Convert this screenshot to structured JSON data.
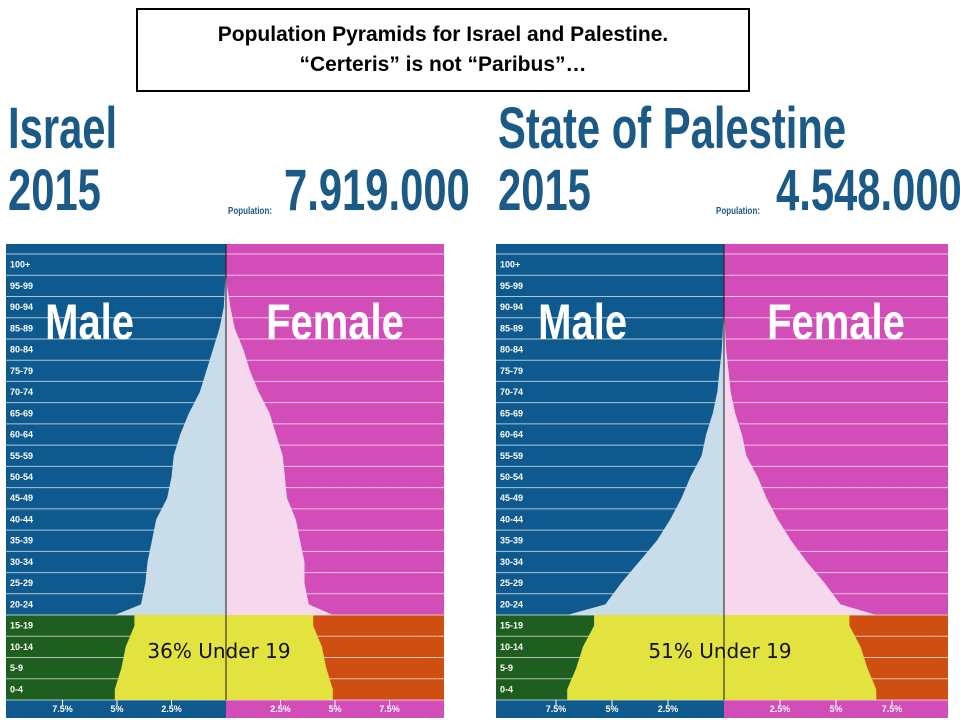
{
  "slide": {
    "title_line1": "Population Pyramids for Israel and Palestine.",
    "title_line2": "“Certeris” is not “Paribus”…"
  },
  "colors": {
    "male_bg": "#0e5a8f",
    "female_bg": "#d24db8",
    "male_young_bg": "#1e5e1f",
    "female_young_bg": "#cf4f12",
    "male_fill": "#c9dcea",
    "female_fill": "#f5d8ee",
    "young_fill": "#e2e33e",
    "text_blue": "#1b5a87"
  },
  "chart_data": [
    {
      "type": "pyramid",
      "country": "Israel",
      "year": "2015",
      "population_label": "Population:",
      "population": "7.919.000",
      "male_label": "Male",
      "female_label": "Female",
      "annotation": "36% Under 19",
      "age_groups": [
        "0-4",
        "5-9",
        "10-14",
        "15-19",
        "20-24",
        "25-29",
        "30-34",
        "35-39",
        "40-44",
        "45-49",
        "50-54",
        "55-59",
        "60-64",
        "65-69",
        "70-74",
        "75-79",
        "80-84",
        "85-89",
        "90-94",
        "95-99",
        "100+"
      ],
      "male_pct": [
        5.1,
        4.8,
        4.6,
        4.2,
        3.9,
        3.7,
        3.6,
        3.4,
        3.2,
        2.7,
        2.5,
        2.4,
        2.1,
        1.7,
        1.2,
        0.9,
        0.6,
        0.3,
        0.1,
        0.05,
        0.0
      ],
      "female_pct": [
        4.9,
        4.6,
        4.4,
        4.0,
        3.8,
        3.6,
        3.6,
        3.4,
        3.2,
        2.8,
        2.7,
        2.6,
        2.3,
        2.0,
        1.5,
        1.1,
        0.8,
        0.4,
        0.2,
        0.05,
        0.0
      ],
      "x_ticks_male": [
        "7.5%",
        "5%",
        "2.5%"
      ],
      "x_ticks_female": [
        "2.5%",
        "5%",
        "7.5%"
      ],
      "x_max": 10
    },
    {
      "type": "pyramid",
      "country": "State of Palestine",
      "year": "2015",
      "population_label": "Population:",
      "population": "4.548.000",
      "male_label": "Male",
      "female_label": "Female",
      "annotation": "51% Under 19",
      "age_groups": [
        "0-4",
        "5-9",
        "10-14",
        "15-19",
        "20-24",
        "25-29",
        "30-34",
        "35-39",
        "40-44",
        "45-49",
        "50-54",
        "55-59",
        "60-64",
        "65-69",
        "70-74",
        "75-79",
        "80-84",
        "85-89",
        "90-94",
        "95-99",
        "100+"
      ],
      "male_pct": [
        7.0,
        6.6,
        6.3,
        5.8,
        5.3,
        4.6,
        3.8,
        3.0,
        2.4,
        1.9,
        1.5,
        1.0,
        0.8,
        0.5,
        0.3,
        0.2,
        0.1,
        0.05,
        0.0,
        0.0,
        0.0
      ],
      "female_pct": [
        6.8,
        6.4,
        6.1,
        5.6,
        5.2,
        4.5,
        3.7,
        3.0,
        2.4,
        1.9,
        1.5,
        1.0,
        0.8,
        0.5,
        0.3,
        0.2,
        0.1,
        0.05,
        0.0,
        0.0,
        0.0
      ],
      "x_ticks_male": [
        "7.5%",
        "5%",
        "2.5%"
      ],
      "x_ticks_female": [
        "2.5%",
        "5%",
        "7.5%"
      ],
      "x_max": 10
    }
  ]
}
